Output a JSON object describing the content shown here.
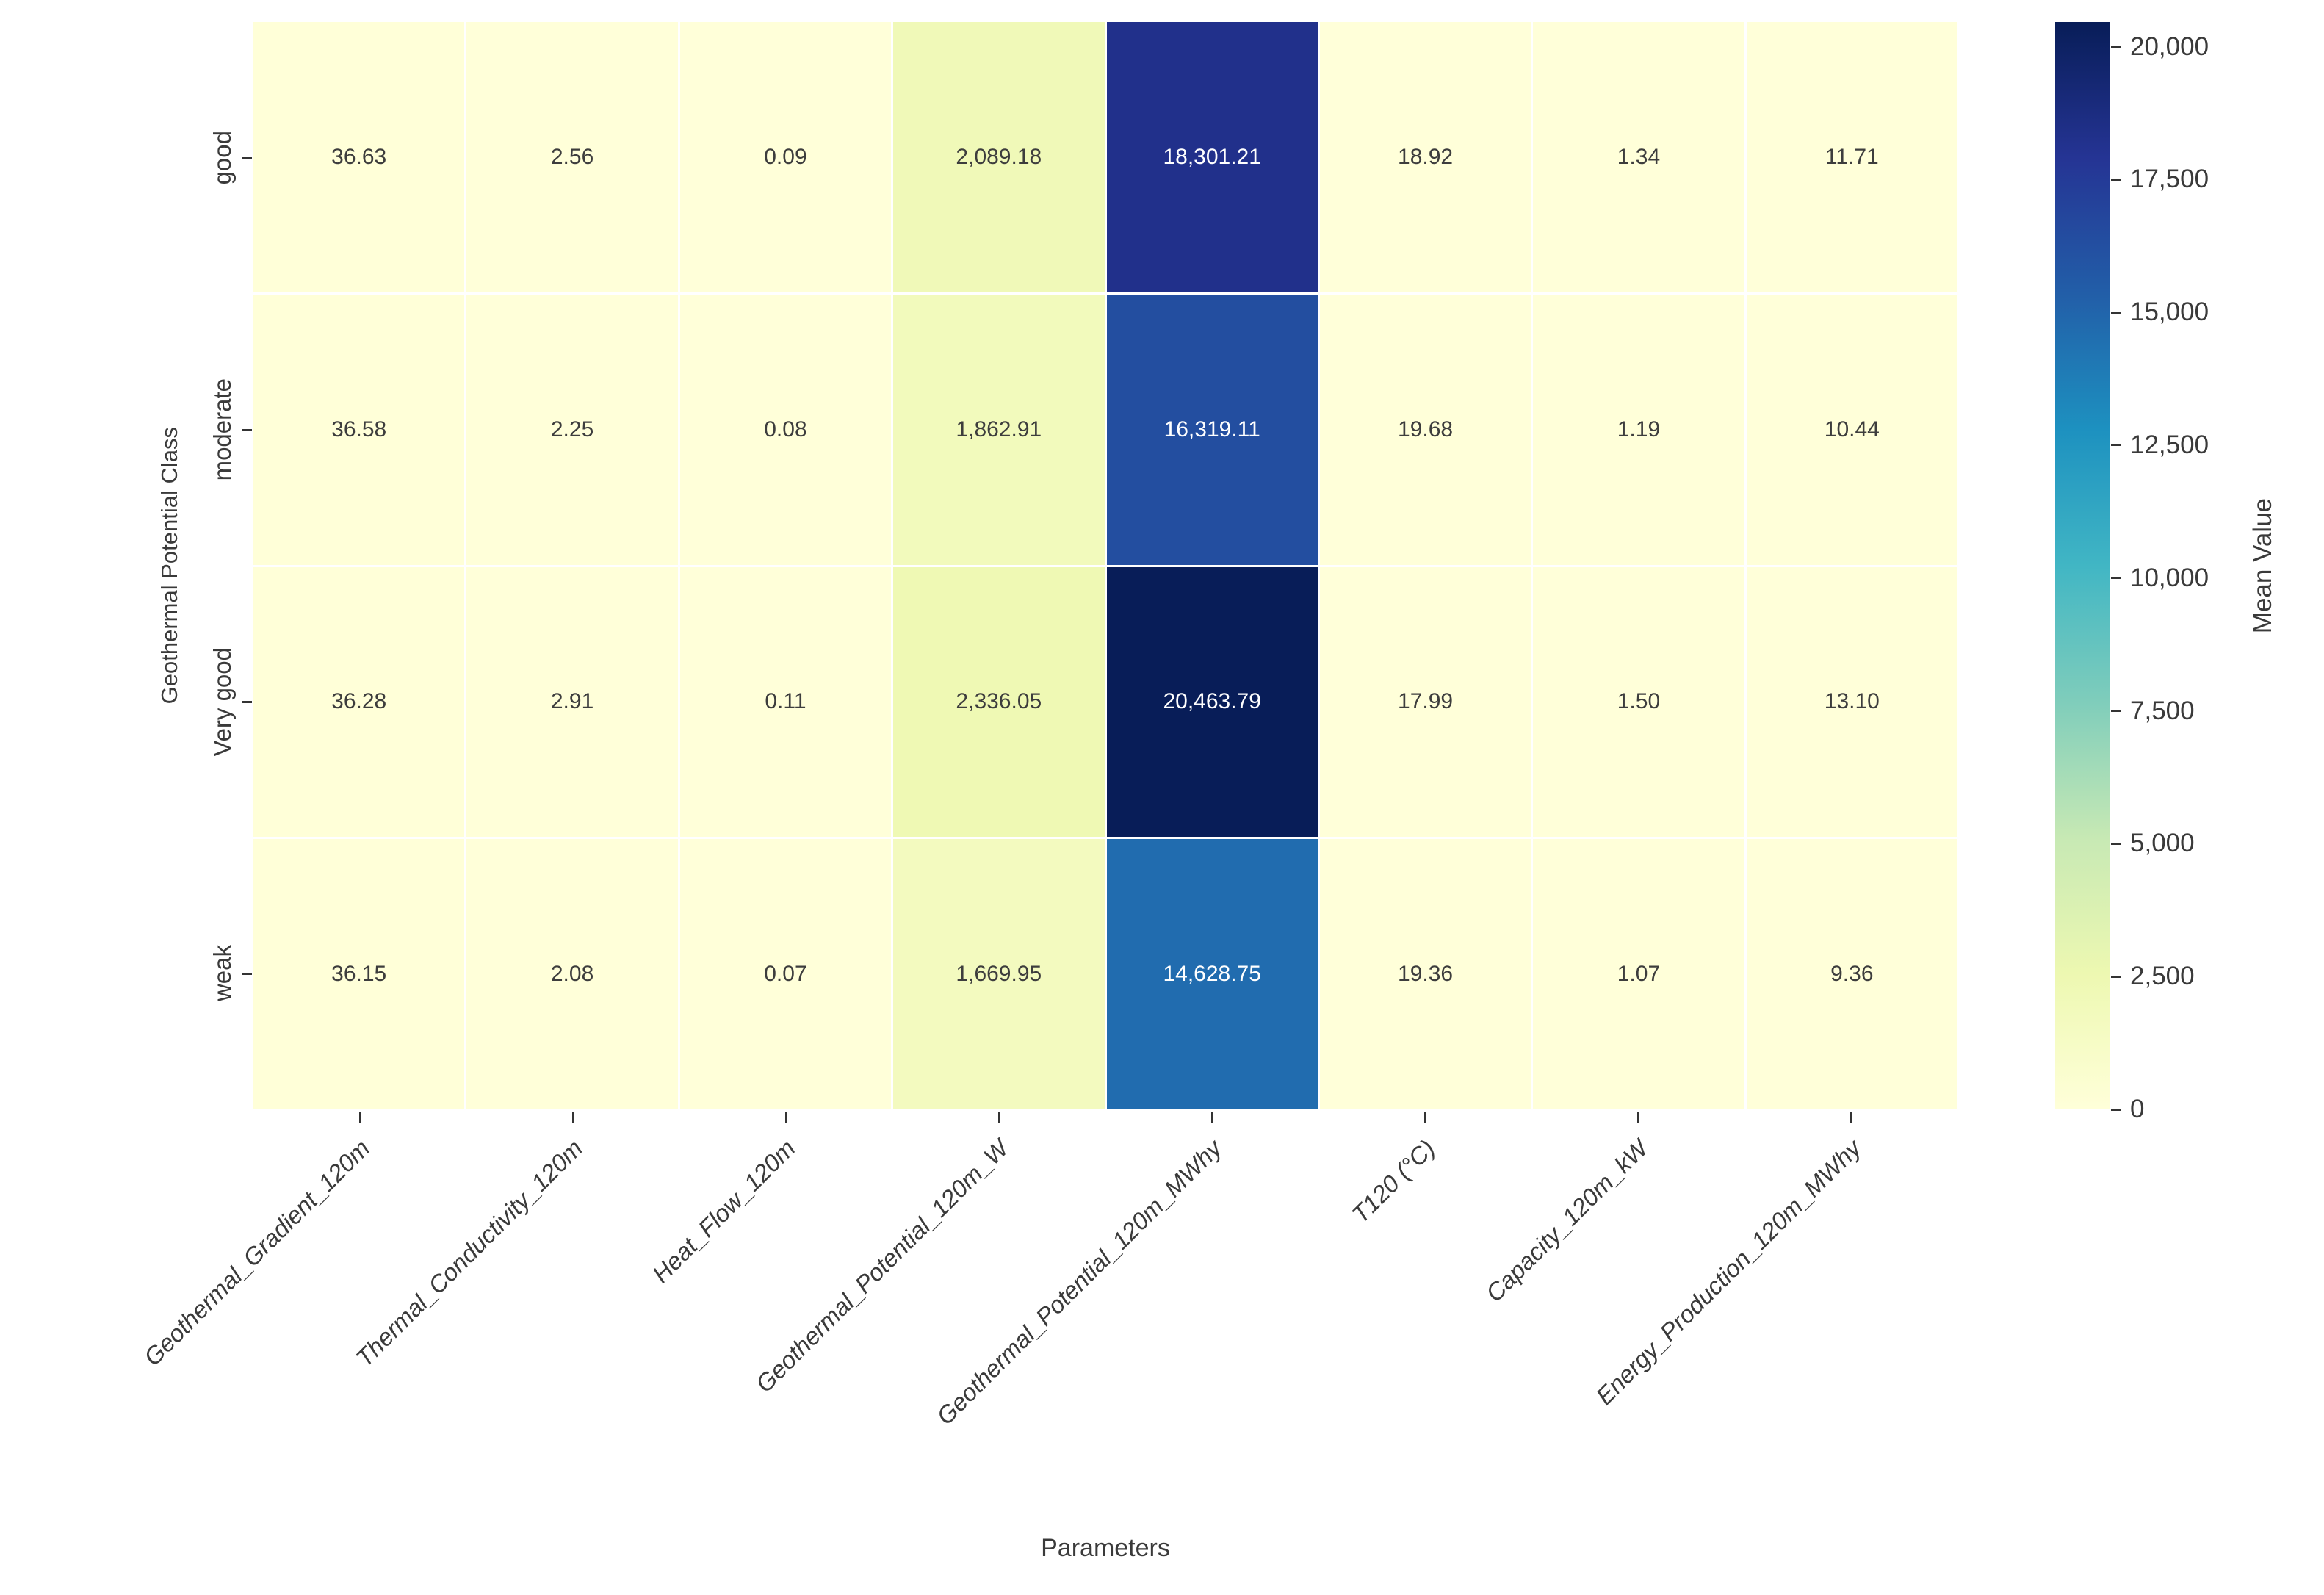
{
  "chart_data": {
    "type": "heatmap",
    "xlabel": "Parameters",
    "ylabel": "Geothermal Potential Class",
    "colorbar_label": "Mean Value",
    "columns": [
      "Geothermal_Gradient_120m",
      "Thermal_Conductivity_120m",
      "Heat_Flow_120m",
      "Geothermal_Potential_120m_W",
      "Geothermal_Potential_120m_MWhy",
      "T120 (°C)",
      "Capacity_120m_kW",
      "Energy_Production_120m_MWhy"
    ],
    "rows": [
      "good",
      "moderate",
      "Very good",
      "weak"
    ],
    "values": [
      [
        36.63,
        2.56,
        0.09,
        2089.18,
        18301.21,
        18.92,
        1.34,
        11.71
      ],
      [
        36.58,
        2.25,
        0.08,
        1862.91,
        16319.11,
        19.68,
        1.19,
        10.44
      ],
      [
        36.28,
        2.91,
        0.11,
        2336.05,
        20463.79,
        17.99,
        1.5,
        13.1
      ],
      [
        36.15,
        2.08,
        0.07,
        1669.95,
        14628.75,
        19.36,
        1.07,
        9.36
      ]
    ],
    "value_labels": [
      [
        "36.63",
        "2.56",
        "0.09",
        "2,089.18",
        "18,301.21",
        "18.92",
        "1.34",
        "11.71"
      ],
      [
        "36.58",
        "2.25",
        "0.08",
        "1,862.91",
        "16,319.11",
        "19.68",
        "1.19",
        "10.44"
      ],
      [
        "36.28",
        "2.91",
        "0.11",
        "2,336.05",
        "20,463.79",
        "17.99",
        "1.50",
        "13.10"
      ],
      [
        "36.15",
        "2.08",
        "0.07",
        "1,669.95",
        "14,628.75",
        "19.36",
        "1.07",
        "9.36"
      ]
    ],
    "vmin": 0,
    "vmax": 20463.79,
    "colormap": "YlGnBu",
    "colormap_stops": [
      "#ffffd9",
      "#edf8b1",
      "#c7e9b4",
      "#7fcdbb",
      "#41b6c4",
      "#1d91c0",
      "#225ea8",
      "#253494",
      "#081d58"
    ],
    "colorbar_ticks": [
      {
        "value": 0,
        "label": "0"
      },
      {
        "value": 2500,
        "label": "2,500"
      },
      {
        "value": 5000,
        "label": "5,000"
      },
      {
        "value": 7500,
        "label": "7,500"
      },
      {
        "value": 10000,
        "label": "10,000"
      },
      {
        "value": 12500,
        "label": "12,500"
      },
      {
        "value": 15000,
        "label": "15,000"
      },
      {
        "value": 17500,
        "label": "17,500"
      },
      {
        "value": 20000,
        "label": "20,000"
      }
    ],
    "legend_position": "right",
    "grid": false,
    "text_color_dark": "#3d3d3d",
    "text_color_light": "#ffffff"
  }
}
